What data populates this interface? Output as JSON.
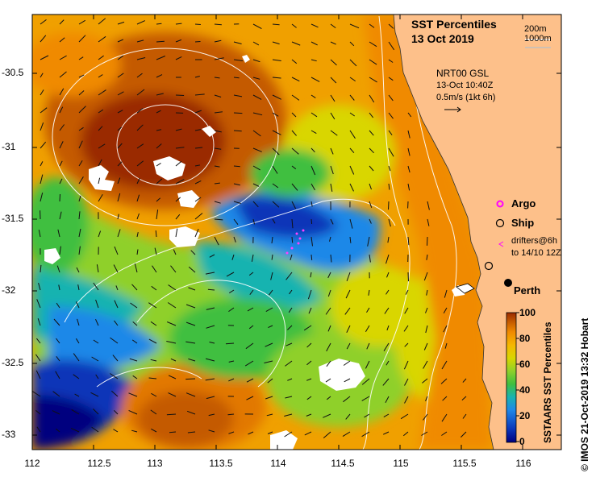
{
  "title": {
    "line1": "SST Percentiles",
    "line2": "13 Oct 2019"
  },
  "depth_legend": {
    "shallow": "200m",
    "deep": "1000m"
  },
  "current_legend": {
    "product": "NRT00 GSL",
    "time": "13-Oct 10:40Z",
    "scale": "0.5m/s (1kt 6h)"
  },
  "markers": {
    "argo": "Argo",
    "ship": "Ship",
    "drifters_line1": "drifters@6h",
    "drifters_line2": "to 14/10 12Z",
    "city": "Perth"
  },
  "colorbar": {
    "title": "SSTAARS SST Percentiles",
    "ticks": [
      "100",
      "80",
      "60",
      "40",
      "20",
      "0"
    ]
  },
  "credit": "© IMOS 21-Oct-2019 13:32 Hobart",
  "axes": {
    "y_ticks": [
      "-30.5",
      "-31",
      "-31.5",
      "-32",
      "-32.5",
      "-33"
    ],
    "x_ticks": [
      "112",
      "112.5",
      "113",
      "113.5",
      "114",
      "114.5",
      "115",
      "115.5",
      "116"
    ]
  },
  "colors": {
    "land": "#fdc08a",
    "white": "#ffffff",
    "scale": [
      "#00007f",
      "#0a35b8",
      "#1e88e8",
      "#19b3b0",
      "#3fbf3f",
      "#8fd02a",
      "#d9d600",
      "#f5b700",
      "#f08a00",
      "#c45a00",
      "#9a2a00"
    ]
  }
}
